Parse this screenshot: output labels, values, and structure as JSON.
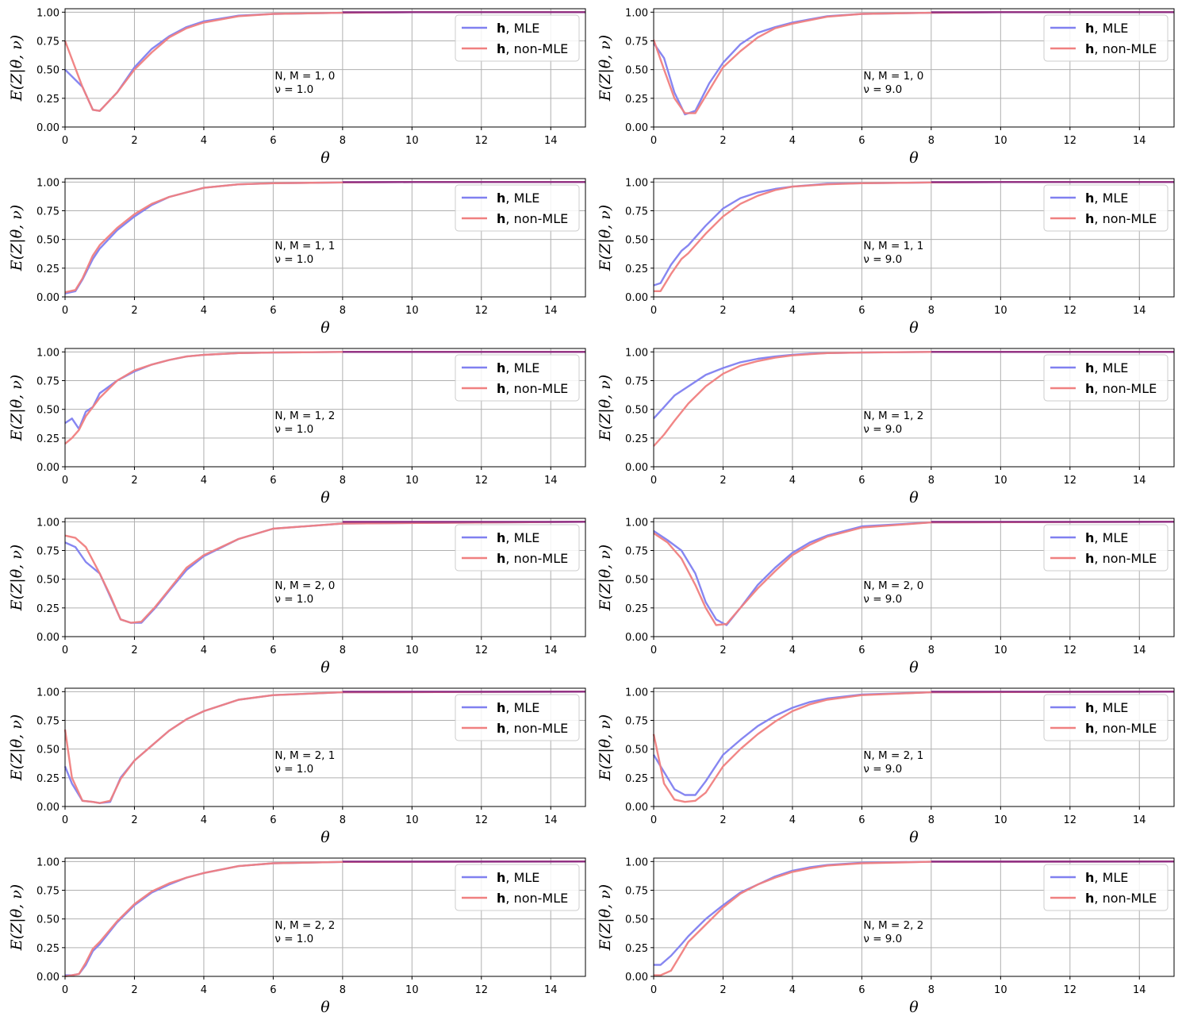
{
  "figure": {
    "xlabel": "θ",
    "ylabel": "E(Z|θ, ν)",
    "xlim": [
      0,
      15
    ],
    "ylim": [
      0,
      1.03
    ],
    "x_ticks": [
      "0",
      "2",
      "4",
      "6",
      "8",
      "10",
      "12",
      "14"
    ],
    "y_ticks": [
      "0.00",
      "0.25",
      "0.50",
      "0.75",
      "1.00"
    ],
    "legend_position": "top-right",
    "grid": true,
    "colors": {
      "mle": "#8080f0",
      "non_mle": "#f08080",
      "overlap": "#8b2a80"
    },
    "legend": [
      {
        "bold": "h",
        "rest": ", MLE"
      },
      {
        "bold": "h",
        "rest": ", non-MLE"
      }
    ]
  },
  "chart_data": [
    {
      "type": "line",
      "nm_label": "N, M = 1, 0",
      "nu_label": "ν = 1.0",
      "x": [
        0,
        0.5,
        0.8,
        1.0,
        1.5,
        2,
        2.5,
        3,
        3.5,
        4,
        5,
        6,
        7,
        8,
        10,
        15
      ],
      "series": [
        {
          "name": "h, MLE",
          "values": [
            0.5,
            0.35,
            0.15,
            0.14,
            0.3,
            0.52,
            0.68,
            0.79,
            0.87,
            0.92,
            0.97,
            0.985,
            0.99,
            0.995,
            1.0,
            1.0
          ]
        },
        {
          "name": "h, non-MLE",
          "values": [
            0.75,
            0.35,
            0.15,
            0.14,
            0.3,
            0.5,
            0.65,
            0.78,
            0.86,
            0.91,
            0.965,
            0.985,
            0.99,
            0.995,
            1.0,
            1.0
          ]
        }
      ]
    },
    {
      "type": "line",
      "nm_label": "N, M = 1, 0",
      "nu_label": "ν = 9.0",
      "x": [
        0,
        0.3,
        0.6,
        0.9,
        1.2,
        1.6,
        2,
        2.5,
        3,
        3.5,
        4,
        5,
        6,
        8,
        10,
        15
      ],
      "series": [
        {
          "name": "h, MLE",
          "values": [
            0.73,
            0.6,
            0.3,
            0.11,
            0.14,
            0.38,
            0.56,
            0.72,
            0.82,
            0.87,
            0.91,
            0.965,
            0.985,
            0.995,
            1.0,
            1.0
          ]
        },
        {
          "name": "h, non-MLE",
          "values": [
            0.76,
            0.5,
            0.25,
            0.12,
            0.12,
            0.32,
            0.52,
            0.66,
            0.78,
            0.86,
            0.9,
            0.96,
            0.985,
            0.995,
            1.0,
            1.0
          ]
        }
      ]
    },
    {
      "type": "line",
      "nm_label": "N, M = 1, 1",
      "nu_label": "ν = 1.0",
      "x": [
        0,
        0.3,
        0.5,
        0.8,
        1.0,
        1.5,
        2,
        2.5,
        3,
        3.5,
        4,
        5,
        6,
        8,
        10,
        15
      ],
      "series": [
        {
          "name": "h, MLE",
          "values": [
            0.03,
            0.05,
            0.15,
            0.33,
            0.42,
            0.58,
            0.7,
            0.8,
            0.87,
            0.91,
            0.95,
            0.98,
            0.99,
            0.997,
            1.0,
            1.0
          ]
        },
        {
          "name": "h, non-MLE",
          "values": [
            0.04,
            0.06,
            0.16,
            0.36,
            0.45,
            0.6,
            0.72,
            0.81,
            0.87,
            0.91,
            0.95,
            0.98,
            0.99,
            0.997,
            1.0,
            1.0
          ]
        }
      ]
    },
    {
      "type": "line",
      "nm_label": "N, M = 1, 1",
      "nu_label": "ν = 9.0",
      "x": [
        0,
        0.2,
        0.5,
        0.8,
        1.0,
        1.5,
        2,
        2.5,
        3,
        3.5,
        4,
        5,
        6,
        8,
        10,
        15
      ],
      "series": [
        {
          "name": "h, MLE",
          "values": [
            0.1,
            0.12,
            0.28,
            0.4,
            0.45,
            0.62,
            0.77,
            0.86,
            0.91,
            0.94,
            0.96,
            0.985,
            0.99,
            0.997,
            1.0,
            1.0
          ]
        },
        {
          "name": "h, non-MLE",
          "values": [
            0.05,
            0.05,
            0.2,
            0.33,
            0.38,
            0.55,
            0.7,
            0.81,
            0.88,
            0.93,
            0.96,
            0.98,
            0.99,
            0.997,
            1.0,
            1.0
          ]
        }
      ]
    },
    {
      "type": "line",
      "nm_label": "N, M = 1, 2",
      "nu_label": "ν = 1.0",
      "x": [
        0,
        0.2,
        0.4,
        0.6,
        0.8,
        1.0,
        1.5,
        2,
        2.5,
        3,
        3.5,
        4,
        5,
        6,
        8,
        15
      ],
      "series": [
        {
          "name": "h, MLE",
          "values": [
            0.38,
            0.42,
            0.33,
            0.48,
            0.52,
            0.64,
            0.75,
            0.83,
            0.89,
            0.93,
            0.96,
            0.975,
            0.99,
            0.995,
            1.0,
            1.0
          ]
        },
        {
          "name": "h, non-MLE",
          "values": [
            0.2,
            0.25,
            0.32,
            0.44,
            0.52,
            0.6,
            0.75,
            0.84,
            0.89,
            0.93,
            0.96,
            0.975,
            0.99,
            0.995,
            1.0,
            1.0
          ]
        }
      ]
    },
    {
      "type": "line",
      "nm_label": "N, M = 1, 2",
      "nu_label": "ν = 9.0",
      "x": [
        0,
        0.3,
        0.6,
        1.0,
        1.5,
        2,
        2.5,
        3,
        3.5,
        4,
        4.5,
        5,
        6,
        8,
        10,
        15
      ],
      "series": [
        {
          "name": "h, MLE",
          "values": [
            0.42,
            0.52,
            0.62,
            0.7,
            0.8,
            0.86,
            0.91,
            0.94,
            0.96,
            0.975,
            0.985,
            0.99,
            0.995,
            1.0,
            1.0,
            1.0
          ]
        },
        {
          "name": "h, non-MLE",
          "values": [
            0.18,
            0.28,
            0.4,
            0.55,
            0.7,
            0.81,
            0.88,
            0.92,
            0.95,
            0.97,
            0.98,
            0.99,
            0.995,
            1.0,
            1.0,
            1.0
          ]
        }
      ]
    },
    {
      "type": "line",
      "nm_label": "N, M = 2, 0",
      "nu_label": "ν = 1.0",
      "x": [
        0,
        0.3,
        0.6,
        1.0,
        1.3,
        1.6,
        1.9,
        2.2,
        2.6,
        3,
        3.5,
        4,
        5,
        6,
        8,
        15
      ],
      "series": [
        {
          "name": "h, MLE",
          "values": [
            0.82,
            0.78,
            0.65,
            0.55,
            0.35,
            0.15,
            0.12,
            0.12,
            0.25,
            0.4,
            0.58,
            0.7,
            0.85,
            0.94,
            0.985,
            1.0
          ]
        },
        {
          "name": "h, non-MLE",
          "values": [
            0.88,
            0.86,
            0.78,
            0.55,
            0.36,
            0.15,
            0.12,
            0.13,
            0.26,
            0.41,
            0.6,
            0.71,
            0.85,
            0.94,
            0.985,
            1.0
          ]
        }
      ]
    },
    {
      "type": "line",
      "nm_label": "N, M = 2, 0",
      "nu_label": "ν = 9.0",
      "x": [
        0,
        0.4,
        0.8,
        1.2,
        1.5,
        1.8,
        2.1,
        2.5,
        3,
        3.5,
        4,
        4.5,
        5,
        6,
        8,
        15
      ],
      "series": [
        {
          "name": "h, MLE",
          "values": [
            0.92,
            0.84,
            0.75,
            0.55,
            0.3,
            0.15,
            0.1,
            0.25,
            0.45,
            0.6,
            0.73,
            0.82,
            0.88,
            0.96,
            0.995,
            1.0
          ]
        },
        {
          "name": "h, non-MLE",
          "values": [
            0.9,
            0.82,
            0.68,
            0.45,
            0.25,
            0.1,
            0.11,
            0.25,
            0.42,
            0.57,
            0.71,
            0.8,
            0.87,
            0.95,
            0.995,
            1.0
          ]
        }
      ]
    },
    {
      "type": "line",
      "nm_label": "N, M = 2, 1",
      "nu_label": "ν = 1.0",
      "x": [
        0,
        0.2,
        0.5,
        0.8,
        1.0,
        1.3,
        1.6,
        2,
        2.5,
        3,
        3.5,
        4,
        5,
        6,
        8,
        15
      ],
      "series": [
        {
          "name": "h, MLE",
          "values": [
            0.35,
            0.2,
            0.05,
            0.04,
            0.03,
            0.04,
            0.25,
            0.4,
            0.53,
            0.66,
            0.76,
            0.83,
            0.93,
            0.97,
            0.995,
            1.0
          ]
        },
        {
          "name": "h, non-MLE",
          "values": [
            0.67,
            0.25,
            0.05,
            0.04,
            0.03,
            0.05,
            0.24,
            0.4,
            0.53,
            0.66,
            0.76,
            0.83,
            0.93,
            0.97,
            0.995,
            1.0
          ]
        }
      ]
    },
    {
      "type": "line",
      "nm_label": "N, M = 2, 1",
      "nu_label": "ν = 9.0",
      "x": [
        0,
        0.3,
        0.6,
        0.9,
        1.2,
        1.5,
        2,
        2.5,
        3,
        3.5,
        4,
        4.5,
        5,
        6,
        8,
        15
      ],
      "series": [
        {
          "name": "h, MLE",
          "values": [
            0.45,
            0.3,
            0.15,
            0.1,
            0.1,
            0.22,
            0.45,
            0.58,
            0.7,
            0.79,
            0.86,
            0.91,
            0.94,
            0.975,
            0.995,
            1.0
          ]
        },
        {
          "name": "h, non-MLE",
          "values": [
            0.63,
            0.2,
            0.06,
            0.04,
            0.05,
            0.12,
            0.35,
            0.5,
            0.63,
            0.74,
            0.83,
            0.89,
            0.93,
            0.97,
            0.995,
            1.0
          ]
        }
      ]
    },
    {
      "type": "line",
      "nm_label": "N, M = 2, 2",
      "nu_label": "ν = 1.0",
      "x": [
        0,
        0.2,
        0.4,
        0.6,
        0.8,
        1.0,
        1.5,
        2,
        2.5,
        3,
        3.5,
        4,
        5,
        6,
        8,
        15
      ],
      "series": [
        {
          "name": "h, MLE",
          "values": [
            0.01,
            0.01,
            0.02,
            0.1,
            0.22,
            0.28,
            0.47,
            0.62,
            0.73,
            0.8,
            0.86,
            0.9,
            0.96,
            0.985,
            0.997,
            1.0
          ]
        },
        {
          "name": "h, non-MLE",
          "values": [
            0.0,
            0.01,
            0.02,
            0.12,
            0.24,
            0.3,
            0.48,
            0.63,
            0.74,
            0.81,
            0.86,
            0.9,
            0.96,
            0.985,
            0.997,
            1.0
          ]
        }
      ]
    },
    {
      "type": "line",
      "nm_label": "N, M = 2, 2",
      "nu_label": "ν = 9.0",
      "x": [
        0,
        0.2,
        0.5,
        0.8,
        1.0,
        1.5,
        2,
        2.5,
        3,
        3.5,
        4,
        4.5,
        5,
        6,
        8,
        15
      ],
      "series": [
        {
          "name": "h, MLE",
          "values": [
            0.1,
            0.1,
            0.18,
            0.28,
            0.35,
            0.5,
            0.62,
            0.73,
            0.8,
            0.87,
            0.92,
            0.95,
            0.97,
            0.99,
            0.998,
            1.0
          ]
        },
        {
          "name": "h, non-MLE",
          "values": [
            0.01,
            0.01,
            0.05,
            0.2,
            0.3,
            0.45,
            0.6,
            0.72,
            0.8,
            0.86,
            0.91,
            0.94,
            0.965,
            0.985,
            0.998,
            1.0
          ]
        }
      ]
    }
  ]
}
